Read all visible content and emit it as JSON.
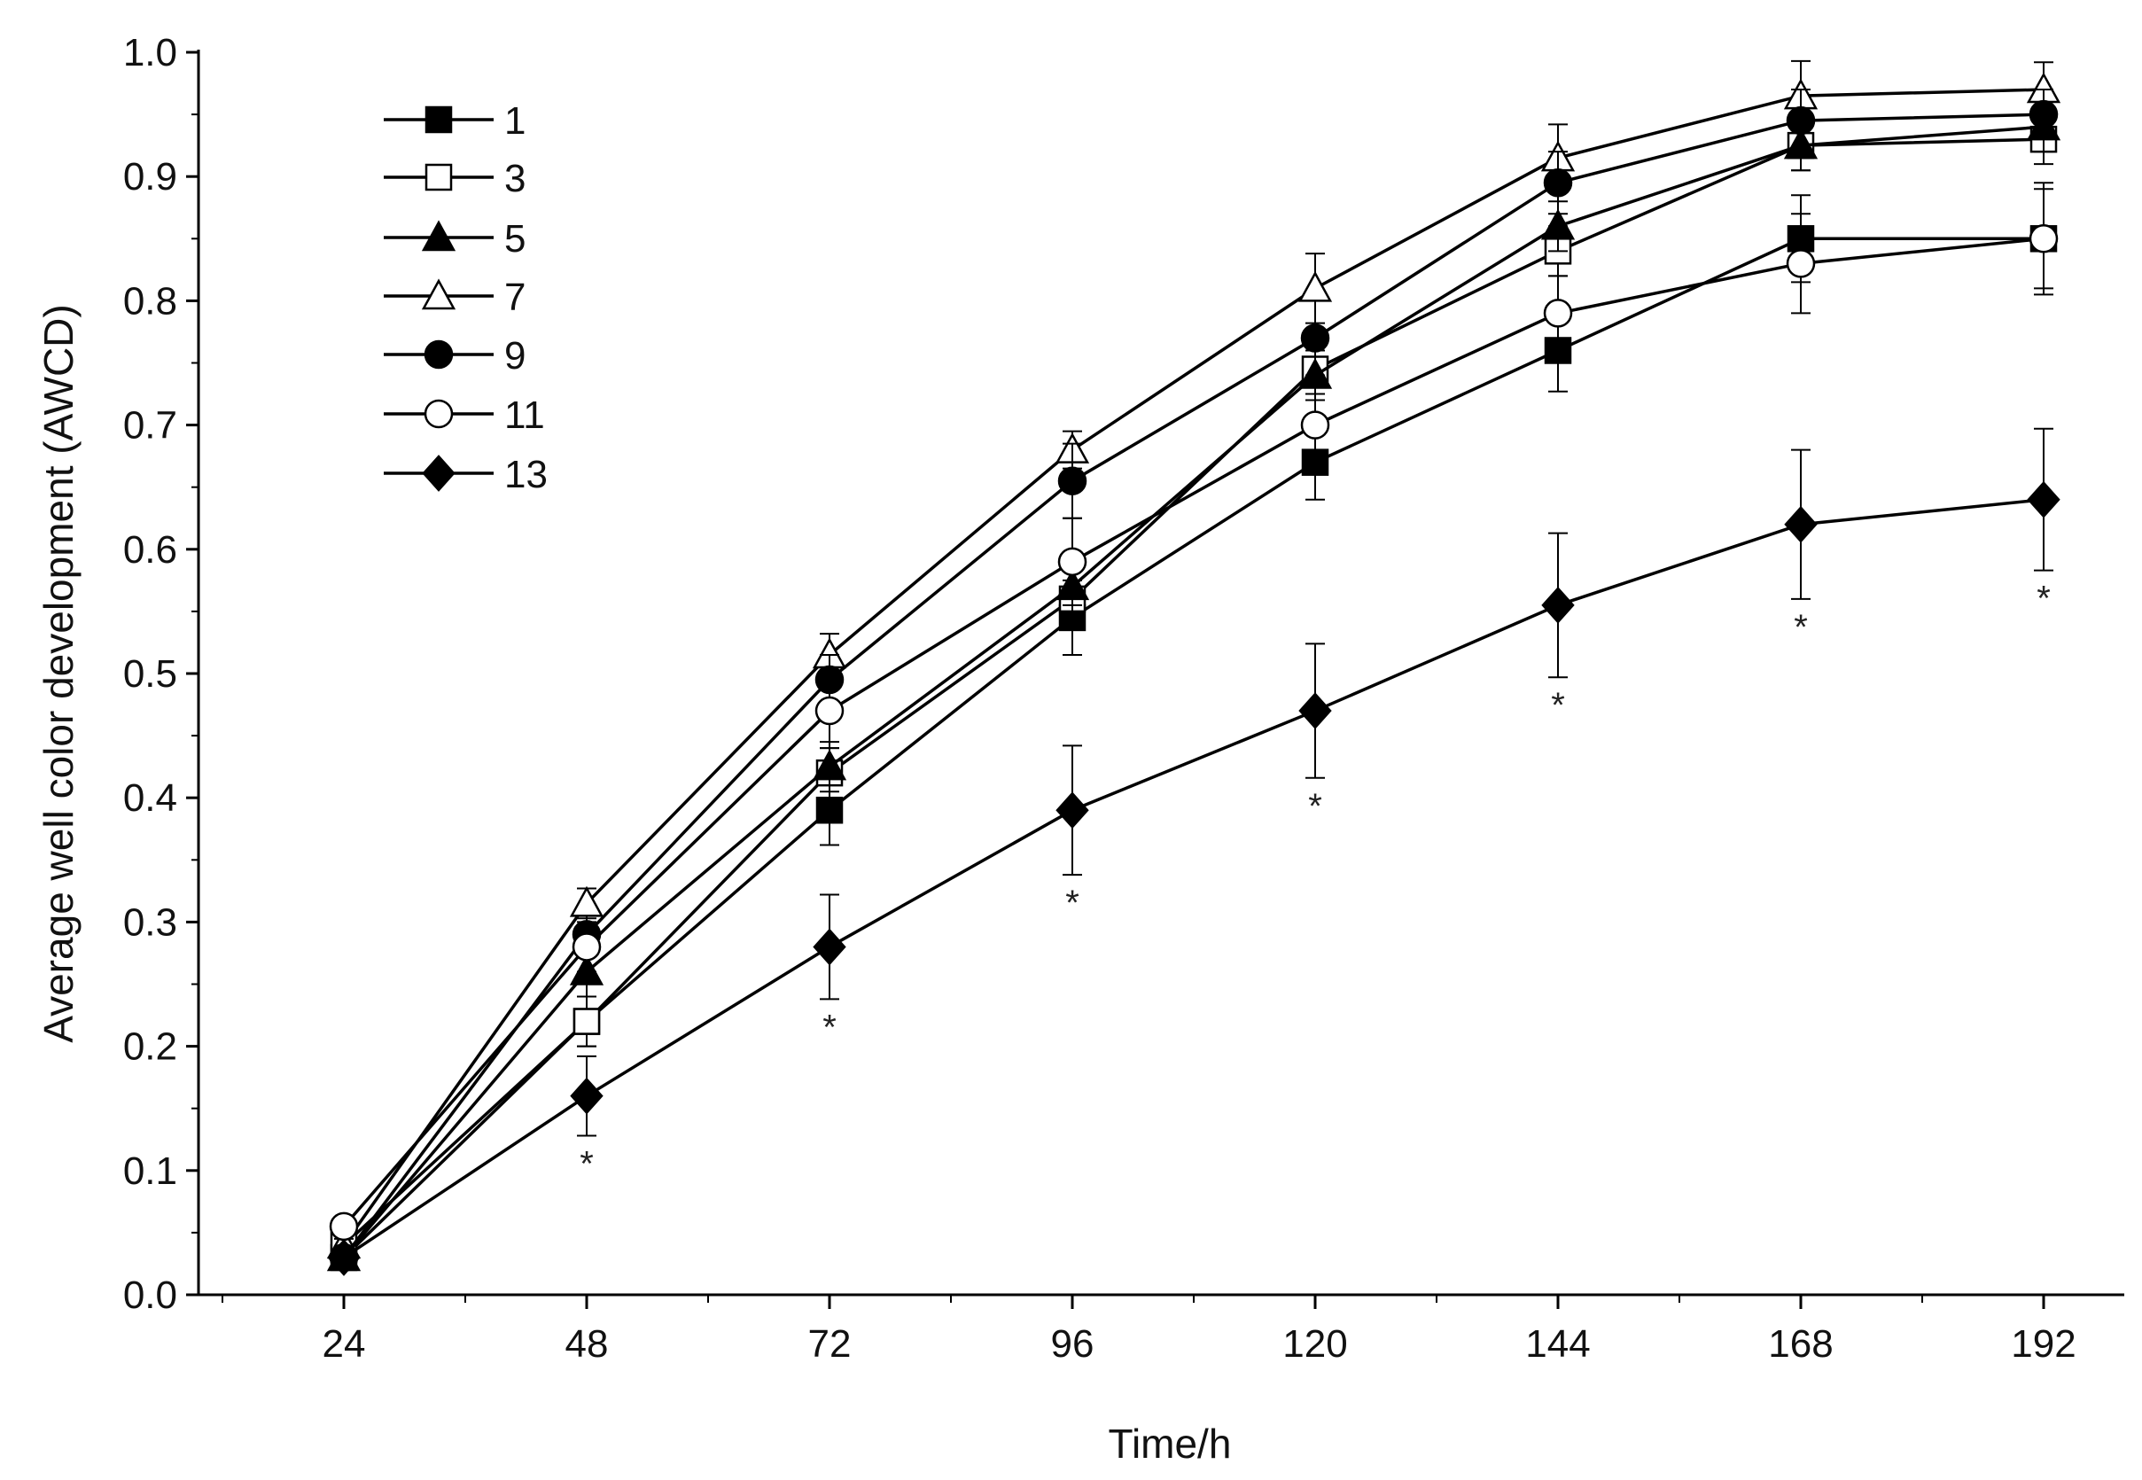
{
  "chart_data": {
    "type": "line",
    "title": "",
    "xlabel": "Time/h",
    "ylabel": "Average well color development (AWCD)",
    "x": [
      24,
      48,
      72,
      96,
      120,
      144,
      168,
      192
    ],
    "xlim": [
      12,
      204
    ],
    "ylim": [
      0.0,
      1.0
    ],
    "xticks": [
      "24",
      "48",
      "72",
      "96",
      "120",
      "144",
      "168",
      "192"
    ],
    "yticks": [
      "0.0",
      "0.1",
      "0.2",
      "0.3",
      "0.4",
      "0.5",
      "0.6",
      "0.7",
      "0.8",
      "0.9",
      "1.0"
    ],
    "grid": false,
    "legend_position": "top-left",
    "series": [
      {
        "name": "1",
        "marker": "square-filled",
        "values": [
          0.03,
          0.22,
          0.39,
          0.545,
          0.67,
          0.76,
          0.85,
          0.85
        ],
        "errors": [
          0.005,
          0.02,
          0.028,
          0.03,
          0.03,
          0.033,
          0.035,
          0.04
        ]
      },
      {
        "name": "3",
        "marker": "square-open",
        "values": [
          0.04,
          0.22,
          0.42,
          0.56,
          0.745,
          0.84,
          0.925,
          0.93
        ],
        "errors": [
          0.005,
          0.02,
          0.02,
          0.025,
          0.02,
          0.02,
          0.02,
          0.02
        ]
      },
      {
        "name": "5",
        "marker": "triangle-filled",
        "values": [
          0.03,
          0.26,
          0.425,
          0.57,
          0.74,
          0.86,
          0.925,
          0.94
        ],
        "errors": [
          0.005,
          0.02,
          0.02,
          0.025,
          0.02,
          0.02,
          0.02,
          0.02
        ]
      },
      {
        "name": "7",
        "marker": "triangle-open",
        "values": [
          0.04,
          0.315,
          0.515,
          0.68,
          0.81,
          0.915,
          0.965,
          0.97
        ],
        "errors": [
          0.005,
          0.012,
          0.017,
          0.015,
          0.028,
          0.027,
          0.028,
          0.022
        ]
      },
      {
        "name": "9",
        "marker": "circle-filled",
        "values": [
          0.03,
          0.29,
          0.495,
          0.655,
          0.77,
          0.895,
          0.945,
          0.95
        ],
        "errors": [
          0.005,
          0.015,
          0.02,
          0.03,
          0.03,
          0.025,
          0.025,
          0.02
        ]
      },
      {
        "name": "11",
        "marker": "circle-open",
        "values": [
          0.055,
          0.28,
          0.47,
          0.59,
          0.7,
          0.79,
          0.83,
          0.85
        ],
        "errors": [
          0.006,
          0.02,
          0.03,
          0.035,
          0.03,
          0.03,
          0.04,
          0.045
        ]
      },
      {
        "name": "13",
        "marker": "diamond-filled",
        "values": [
          0.03,
          0.16,
          0.28,
          0.39,
          0.47,
          0.555,
          0.62,
          0.64
        ],
        "errors": [
          0.005,
          0.032,
          0.042,
          0.052,
          0.054,
          0.058,
          0.06,
          0.057
        ]
      }
    ],
    "annotations": [
      {
        "text": "*",
        "x": 48
      },
      {
        "text": "*",
        "x": 72
      },
      {
        "text": "*",
        "x": 96
      },
      {
        "text": "*",
        "x": 120
      },
      {
        "text": "*",
        "x": 144
      },
      {
        "text": "*",
        "x": 168
      },
      {
        "text": "*",
        "x": 192
      }
    ]
  }
}
